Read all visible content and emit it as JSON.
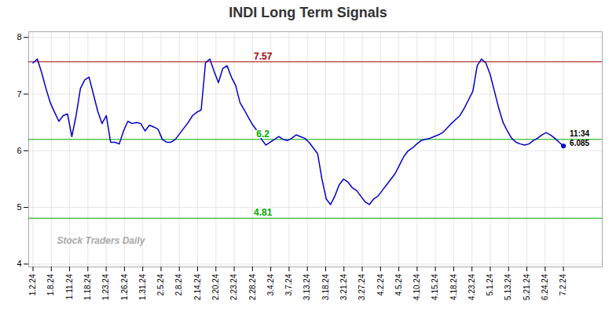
{
  "chart_data": {
    "type": "line",
    "title": "INDI Long Term Signals",
    "x": [
      0,
      1,
      2,
      3,
      4,
      5,
      6,
      7,
      8,
      9,
      10,
      11,
      12,
      13,
      14,
      15,
      16,
      17,
      18,
      19,
      20,
      21,
      22,
      23,
      24,
      25,
      26,
      27,
      28,
      29,
      30,
      31,
      32,
      33,
      34,
      35,
      36,
      37,
      38,
      39,
      40,
      41,
      42,
      43,
      44,
      45,
      46,
      47,
      48,
      49,
      50,
      51,
      52,
      53,
      54,
      55,
      56,
      57,
      58,
      59,
      60,
      61,
      62,
      63,
      64,
      65,
      66,
      67,
      68,
      69,
      70,
      71,
      72,
      73,
      74,
      75,
      76,
      77,
      78,
      79,
      80,
      81,
      82,
      83,
      84,
      85,
      86,
      87,
      88,
      89,
      90,
      91,
      92,
      93,
      94,
      95,
      96,
      97,
      98,
      99,
      100,
      101,
      102,
      103,
      104,
      105,
      106,
      107,
      108,
      109,
      110,
      111,
      112,
      113,
      114,
      115,
      116,
      117,
      118,
      119,
      120,
      121,
      122,
      123
    ],
    "values": [
      7.55,
      7.62,
      7.38,
      7.1,
      6.85,
      6.68,
      6.52,
      6.62,
      6.65,
      6.25,
      6.62,
      7.1,
      7.25,
      7.3,
      7.0,
      6.7,
      6.48,
      6.62,
      6.15,
      6.15,
      6.12,
      6.35,
      6.52,
      6.48,
      6.5,
      6.48,
      6.35,
      6.45,
      6.42,
      6.38,
      6.2,
      6.15,
      6.15,
      6.2,
      6.3,
      6.4,
      6.5,
      6.62,
      6.68,
      6.72,
      7.55,
      7.62,
      7.4,
      7.2,
      7.45,
      7.5,
      7.3,
      7.15,
      6.85,
      6.72,
      6.58,
      6.45,
      6.35,
      6.2,
      6.1,
      6.15,
      6.2,
      6.25,
      6.2,
      6.18,
      6.22,
      6.28,
      6.25,
      6.22,
      6.15,
      6.05,
      5.95,
      5.5,
      5.15,
      5.05,
      5.2,
      5.4,
      5.5,
      5.45,
      5.35,
      5.3,
      5.2,
      5.1,
      5.05,
      5.15,
      5.2,
      5.3,
      5.4,
      5.5,
      5.6,
      5.75,
      5.9,
      6.0,
      6.05,
      6.12,
      6.18,
      6.2,
      6.22,
      6.25,
      6.28,
      6.32,
      6.4,
      6.48,
      6.55,
      6.62,
      6.75,
      6.9,
      7.05,
      7.5,
      7.62,
      7.55,
      7.35,
      7.05,
      6.75,
      6.5,
      6.35,
      6.22,
      6.15,
      6.12,
      6.1,
      6.12,
      6.18,
      6.22,
      6.28,
      6.32,
      6.28,
      6.22,
      6.15,
      6.085
    ],
    "color": "#0000cc",
    "xlim": [
      -1,
      132
    ],
    "xticks": [
      {
        "value": 0,
        "label": "1.2.24"
      },
      {
        "value": 4.241379310344828,
        "label": "1.8.24"
      },
      {
        "value": 8.482758620689655,
        "label": "1.11.24"
      },
      {
        "value": 12.724137931034482,
        "label": "1.18.24"
      },
      {
        "value": 16.96551724137931,
        "label": "1.23.24"
      },
      {
        "value": 21.20689655172414,
        "label": "1.26.24"
      },
      {
        "value": 25.448275862068964,
        "label": "1.31.24"
      },
      {
        "value": 29.689655172413794,
        "label": "2.5.24"
      },
      {
        "value": 33.93103448275862,
        "label": "2.8.24"
      },
      {
        "value": 38.172413793103445,
        "label": "2.14.24"
      },
      {
        "value": 42.41379310344828,
        "label": "2.20.24"
      },
      {
        "value": 46.6551724137931,
        "label": "2.23.24"
      },
      {
        "value": 50.89655172413793,
        "label": "2.28.24"
      },
      {
        "value": 55.13793103448276,
        "label": "3.4.24"
      },
      {
        "value": 59.37931034482759,
        "label": "3.7.24"
      },
      {
        "value": 63.62068965517241,
        "label": "3.13.24"
      },
      {
        "value": 67.86206896551724,
        "label": "3.18.24"
      },
      {
        "value": 72.10344827586206,
        "label": "3.21.24"
      },
      {
        "value": 76.34482758620689,
        "label": "3.27.24"
      },
      {
        "value": 80.58620689655173,
        "label": "4.2.24"
      },
      {
        "value": 84.82758620689656,
        "label": "4.5.24"
      },
      {
        "value": 89.06896551724138,
        "label": "4.10.24"
      },
      {
        "value": 93.3103448275862,
        "label": "4.15.24"
      },
      {
        "value": 97.55172413793103,
        "label": "4.18.24"
      },
      {
        "value": 101.79310344827586,
        "label": "4.23.24"
      },
      {
        "value": 106.03448275862068,
        "label": "5.1.24"
      },
      {
        "value": 110.27586206896552,
        "label": "5.13.24"
      },
      {
        "value": 114.51724137931035,
        "label": "5.21.24"
      },
      {
        "value": 118.75862068965517,
        "label": "6.24.24"
      },
      {
        "value": 123,
        "label": "7.2.24"
      }
    ],
    "ylim": [
      3.95,
      8.1
    ],
    "yticks": [
      4,
      5,
      6,
      7,
      8
    ],
    "grid": true,
    "hlines": [
      {
        "value": 7.57,
        "color": "#aa0000",
        "label": "7.57"
      },
      {
        "value": 6.2,
        "color": "#00aa00",
        "label": "6.2"
      },
      {
        "value": 4.81,
        "color": "#00aa00",
        "label": "4.81"
      }
    ],
    "annotations": [
      "11:34",
      "6.085"
    ],
    "watermark": "Stock Traders Daily"
  }
}
